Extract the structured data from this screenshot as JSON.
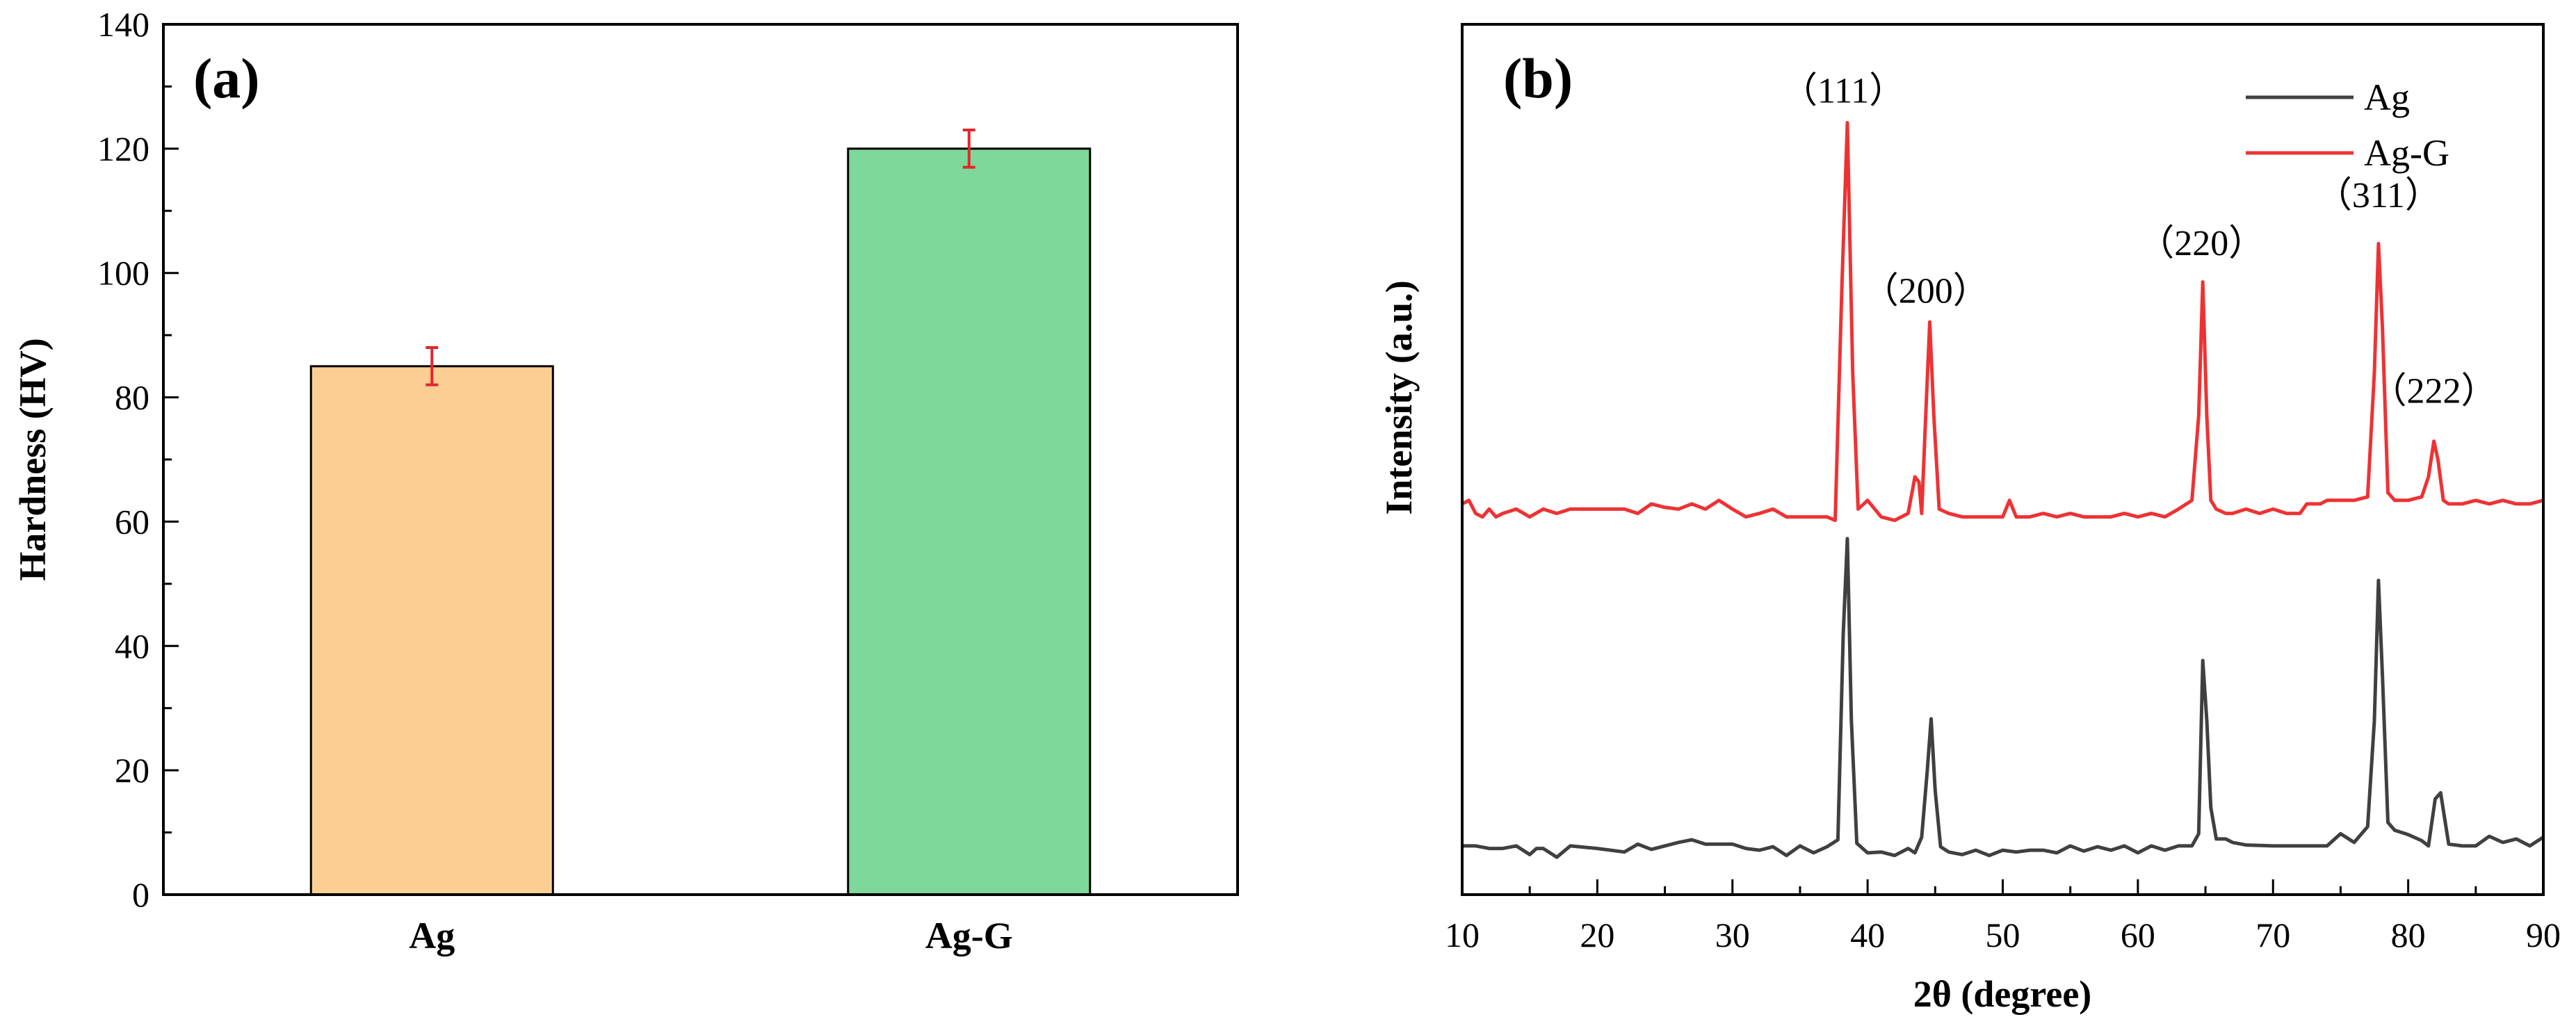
{
  "chart_data": [
    {
      "type": "bar",
      "panel_label": "(a)",
      "title": "",
      "xlabel": "",
      "ylabel": "Hardness (HV)",
      "ylim": [
        0,
        140
      ],
      "yticks": [
        "0",
        "20",
        "40",
        "60",
        "80",
        "100",
        "120",
        "140"
      ],
      "categories": [
        "Ag",
        "Ag-G"
      ],
      "values": [
        85,
        120
      ],
      "errors": [
        3,
        3
      ],
      "colors": {
        "bars": [
          "#FBCF94",
          "#7ED899"
        ],
        "error_bar": "#E3262B",
        "edge": "#000000"
      }
    },
    {
      "type": "line",
      "panel_label": "(b)",
      "title": "",
      "xlabel": "2θ (degree)",
      "ylabel": "Intensity (a.u.)",
      "xlim": [
        10,
        90
      ],
      "ylim": [
        0,
        100
      ],
      "xticks": [
        "10",
        "20",
        "30",
        "40",
        "50",
        "60",
        "70",
        "80",
        "90"
      ],
      "legend": "top-right",
      "peak_labels": [
        {
          "text": "（111）",
          "x": 38.2,
          "y": 91
        },
        {
          "text": "（200）",
          "x": 44.3,
          "y": 68
        },
        {
          "text": "（220）",
          "x": 64.7,
          "y": 73.5
        },
        {
          "text": "（311）",
          "x": 77.8,
          "y": 79
        },
        {
          "text": "（222）",
          "x": 81.9,
          "y": 56.5
        }
      ],
      "series": [
        {
          "name": "Ag",
          "color": "#404040",
          "x": [
            10,
            11,
            12,
            13,
            14,
            15,
            15.5,
            16,
            17,
            18,
            20,
            22,
            23,
            24,
            25,
            26,
            27,
            28,
            30,
            31,
            32,
            33,
            34,
            35,
            36,
            37,
            37.8,
            38.2,
            38.5,
            38.8,
            39.2,
            40,
            41,
            42,
            43,
            43.5,
            44,
            44.4,
            44.7,
            45,
            45.4,
            46,
            47,
            48,
            49,
            50,
            51,
            52,
            53,
            54,
            55,
            56,
            57,
            58,
            59,
            60,
            61,
            62,
            63,
            64,
            64.5,
            64.8,
            65.1,
            65.4,
            65.8,
            66.5,
            67,
            68,
            70,
            72,
            73,
            74,
            75,
            76,
            77,
            77.5,
            77.8,
            78.1,
            78.5,
            79,
            80,
            81,
            81.5,
            82,
            82.4,
            83,
            84,
            85,
            86,
            87,
            88,
            89,
            90
          ],
          "y": [
            5.6,
            5.6,
            5.3,
            5.3,
            5.6,
            4.6,
            5.3,
            5.3,
            4.3,
            5.6,
            5.3,
            4.9,
            5.8,
            5.2,
            5.6,
            6,
            6.3,
            5.8,
            5.8,
            5.3,
            5.1,
            5.5,
            4.5,
            5.6,
            4.8,
            5.5,
            6.3,
            30,
            40.9,
            20,
            5.9,
            4.8,
            4.9,
            4.5,
            5.3,
            4.8,
            6.6,
            14,
            20.2,
            12,
            5.5,
            4.9,
            4.6,
            5.1,
            4.5,
            5.1,
            4.9,
            5.1,
            5.1,
            4.8,
            5.6,
            5,
            5.5,
            5.1,
            5.6,
            4.8,
            5.6,
            5.1,
            5.6,
            5.6,
            7,
            26.9,
            20,
            10,
            6.4,
            6.4,
            6,
            5.7,
            5.6,
            5.6,
            5.6,
            5.6,
            7,
            6,
            7.8,
            20,
            36.1,
            25,
            8.3,
            7.4,
            6.9,
            6.2,
            5.6,
            11,
            11.7,
            5.8,
            5.6,
            5.6,
            6.7,
            6,
            6.4,
            5.6,
            6.6
          ]
        },
        {
          "name": "Ag-G",
          "color": "#EE3234",
          "x": [
            10,
            10.5,
            11,
            11.5,
            12,
            12.5,
            13,
            14,
            15,
            16,
            17,
            18,
            20,
            22,
            23,
            24,
            25,
            26,
            27,
            28,
            29,
            30,
            31,
            32,
            33,
            34,
            35,
            36,
            37,
            37.6,
            38.1,
            38.5,
            38.9,
            39.3,
            40,
            41,
            42,
            43,
            43.5,
            43.8,
            44,
            44.3,
            44.6,
            44.9,
            45.3,
            46,
            47,
            48,
            49,
            50,
            50.5,
            51,
            52,
            53,
            54,
            55,
            56,
            57,
            58,
            59,
            60,
            61,
            62,
            63,
            64,
            64.5,
            64.8,
            65.1,
            65.4,
            65.8,
            66.5,
            67,
            68,
            69,
            70,
            71,
            72,
            72.5,
            73,
            73.5,
            74,
            75,
            76,
            77,
            77.5,
            77.8,
            78.1,
            78.5,
            79,
            80,
            81,
            81.5,
            81.9,
            82.2,
            82.6,
            83,
            84,
            85,
            86,
            87,
            88,
            89,
            90
          ],
          "y": [
            44.9,
            45.3,
            43.8,
            43.4,
            44.3,
            43.4,
            43.8,
            44.3,
            43.4,
            44.3,
            43.8,
            44.3,
            44.3,
            44.3,
            43.8,
            44.9,
            44.5,
            44.3,
            44.9,
            44.3,
            45.3,
            44.3,
            43.4,
            43.8,
            44.3,
            43.4,
            43.4,
            43.4,
            43.4,
            43,
            70,
            88.7,
            60,
            44.3,
            45.3,
            43.4,
            43,
            43.8,
            48,
            47.4,
            43.8,
            55,
            65.8,
            55,
            44.3,
            43.8,
            43.4,
            43.4,
            43.4,
            43.4,
            45.3,
            43.4,
            43.4,
            43.8,
            43.4,
            43.8,
            43.4,
            43.4,
            43.4,
            43.8,
            43.4,
            43.8,
            43.4,
            44.3,
            45.3,
            55,
            70.4,
            55,
            45.3,
            44.3,
            43.8,
            43.8,
            44.3,
            43.8,
            44.3,
            43.8,
            43.8,
            44.9,
            44.9,
            44.9,
            45.3,
            45.3,
            45.3,
            45.7,
            60,
            74.8,
            65,
            46.2,
            45.3,
            45.3,
            45.7,
            48,
            52.1,
            50,
            45.3,
            44.9,
            44.9,
            45.3,
            44.9,
            45.3,
            44.9,
            44.9,
            45.3
          ]
        }
      ]
    }
  ]
}
